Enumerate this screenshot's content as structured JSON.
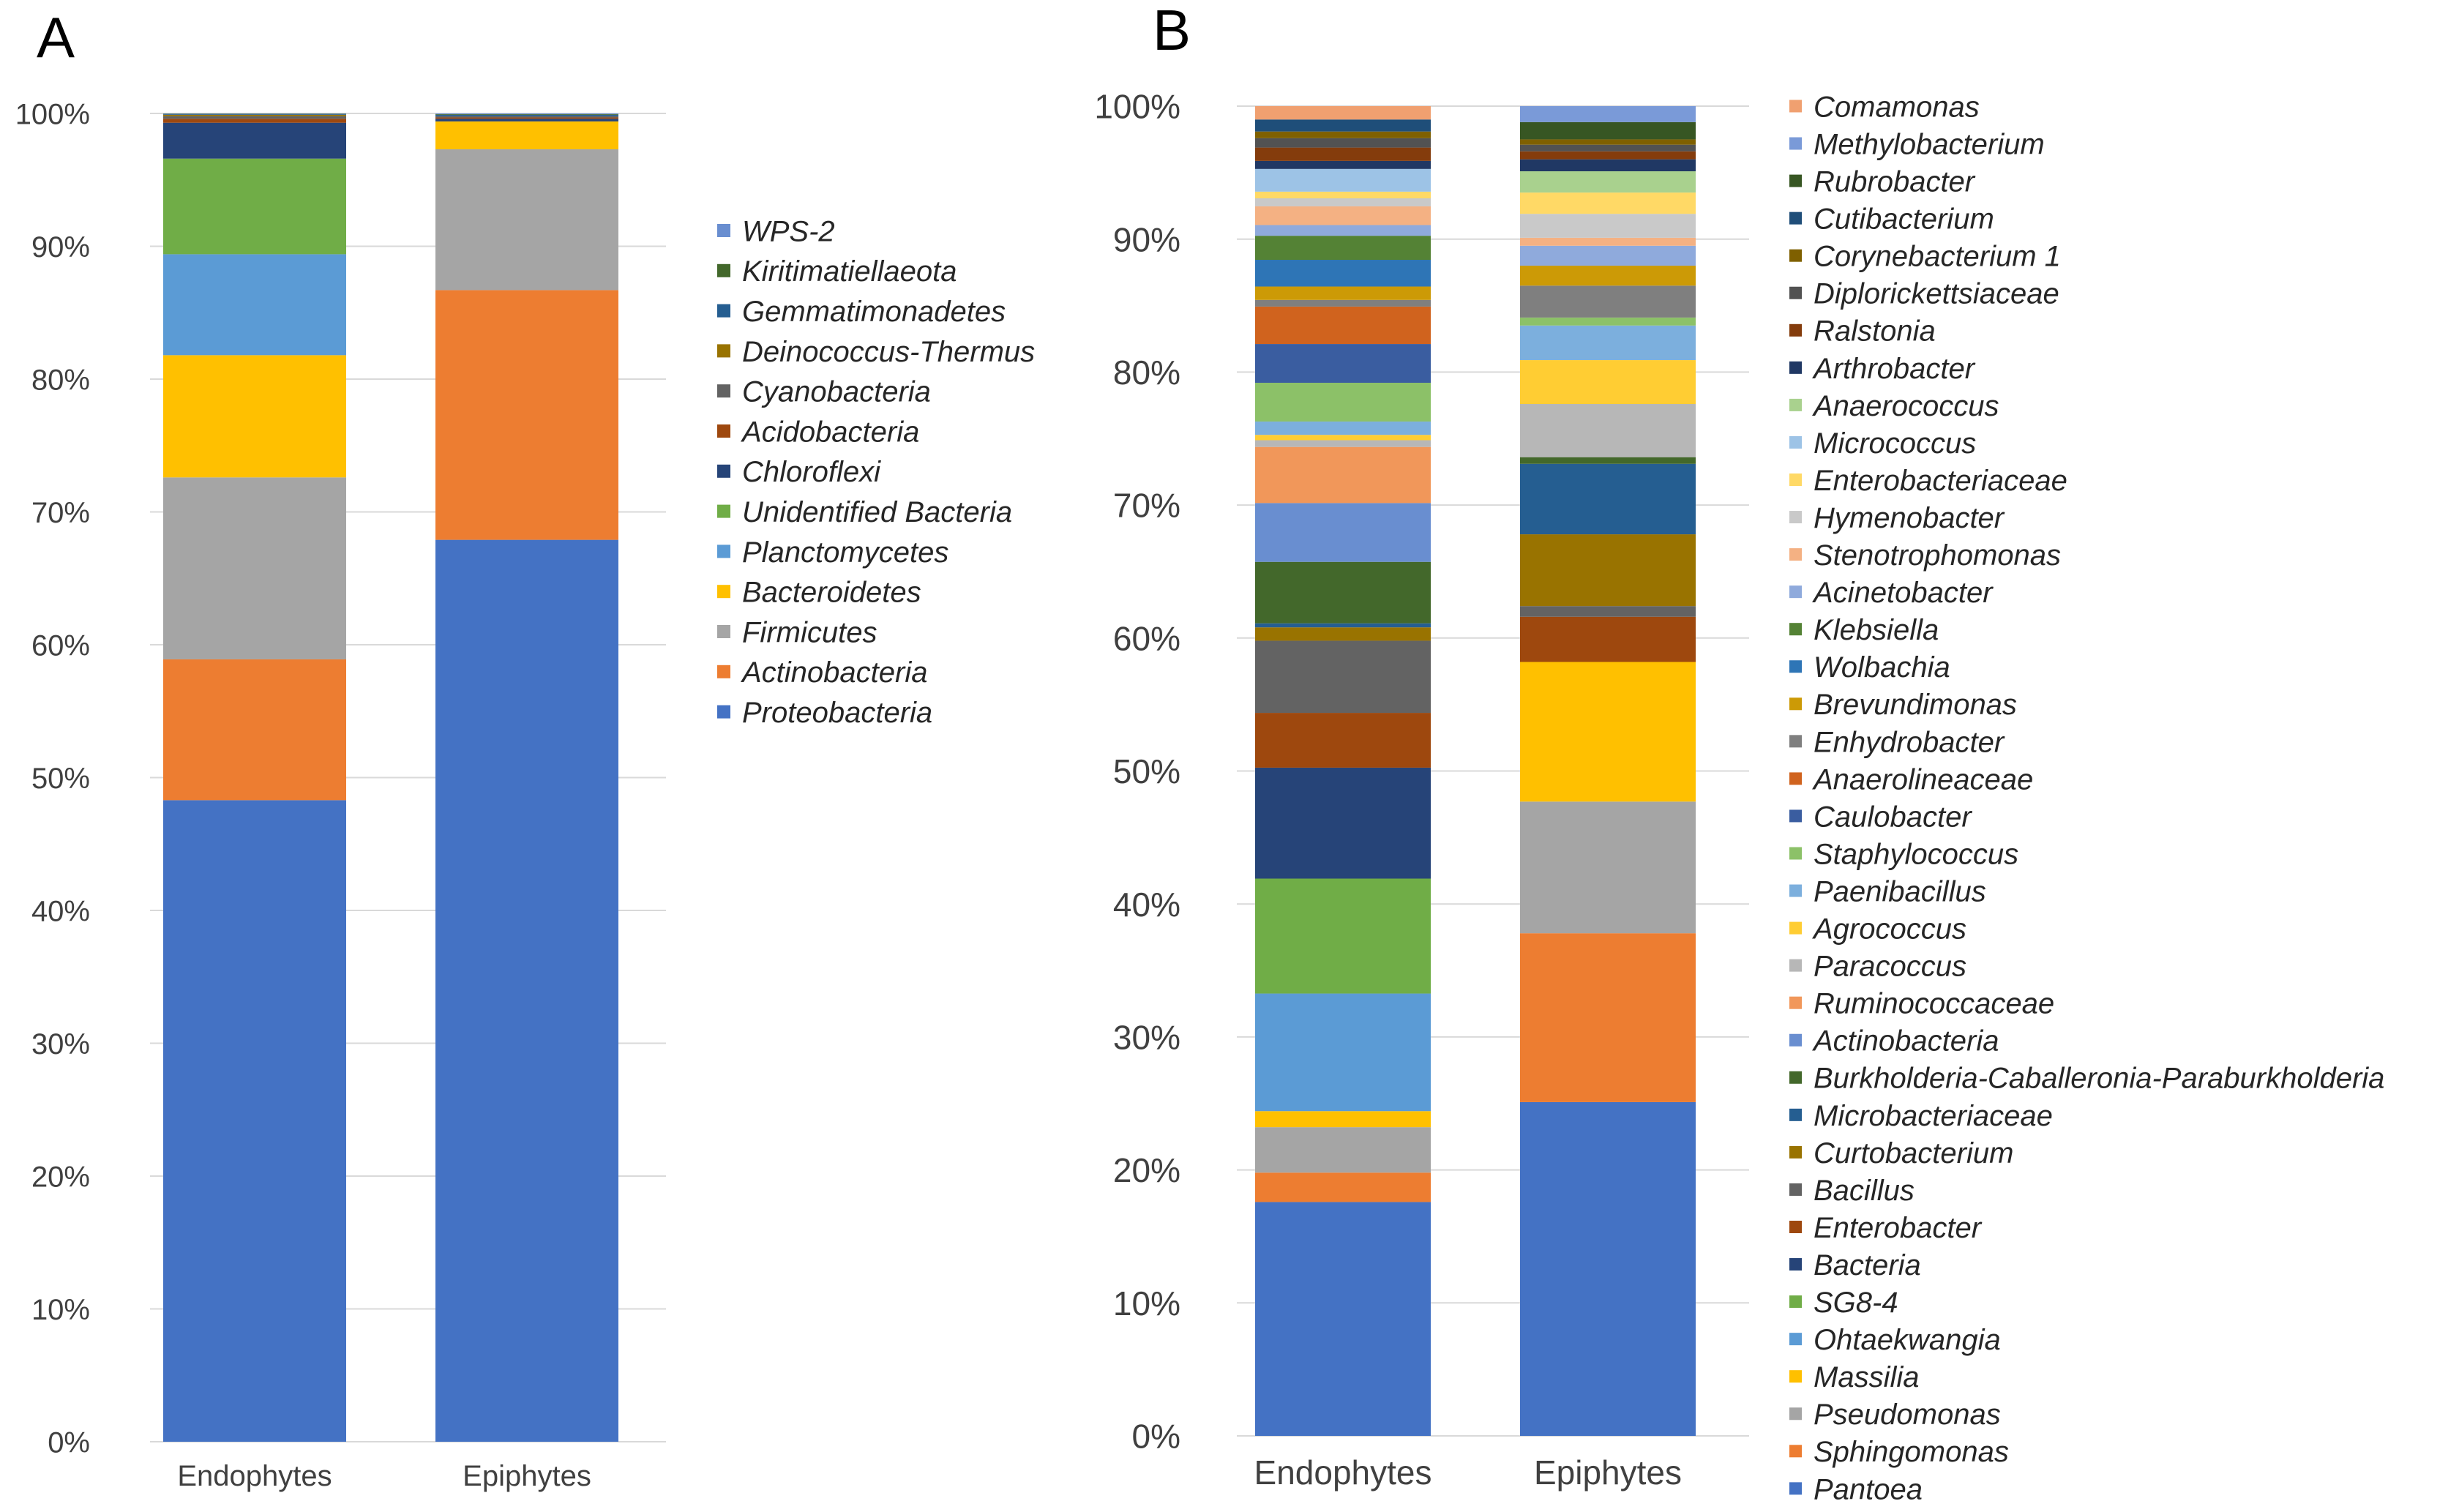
{
  "chart_data": [
    {
      "panel_label": "A",
      "type": "bar",
      "stacked": true,
      "percent": true,
      "categories": [
        "Endophytes",
        "Epiphytes"
      ],
      "ylim": [
        0,
        100
      ],
      "yticks": [
        "0%",
        "10%",
        "20%",
        "30%",
        "40%",
        "50%",
        "60%",
        "70%",
        "80%",
        "90%",
        "100%"
      ],
      "legend_position": "right",
      "series": [
        {
          "name": "Proteobacteria",
          "color": "#4472C4",
          "values": [
            48.3,
            67.9
          ]
        },
        {
          "name": "Actinobacteria",
          "color": "#ED7D31",
          "values": [
            10.6,
            18.8
          ]
        },
        {
          "name": "Firmicutes",
          "color": "#A5A5A5",
          "values": [
            13.7,
            10.6
          ]
        },
        {
          "name": "Bacteroidetes",
          "color": "#FFC000",
          "values": [
            9.2,
            2.1
          ]
        },
        {
          "name": "Planctomycetes",
          "color": "#5B9BD5",
          "values": [
            7.6,
            0.0
          ]
        },
        {
          "name": "Unidentified Bacteria",
          "color": "#70AD47",
          "values": [
            7.2,
            0.0
          ]
        },
        {
          "name": "Chloroflexi",
          "color": "#264478",
          "values": [
            2.7,
            0.2
          ]
        },
        {
          "name": "Acidobacteria",
          "color": "#9E480E",
          "values": [
            0.3,
            0.1
          ]
        },
        {
          "name": "Cyanobacteria",
          "color": "#636363",
          "values": [
            0.2,
            0.1
          ]
        },
        {
          "name": "Deinococcus-Thermus",
          "color": "#997300",
          "values": [
            0.1,
            0.0
          ]
        },
        {
          "name": "Gemmatimonadetes",
          "color": "#255E91",
          "values": [
            0.05,
            0.1
          ]
        },
        {
          "name": "Kiritimatiellaeota",
          "color": "#43682B",
          "values": [
            0.03,
            0.05
          ]
        },
        {
          "name": "WPS-2",
          "color": "#698ED0",
          "values": [
            0.02,
            0.05
          ]
        }
      ]
    },
    {
      "panel_label": "B",
      "type": "bar",
      "stacked": true,
      "percent": true,
      "categories": [
        "Endophytes",
        "Epiphytes"
      ],
      "ylim": [
        0,
        100
      ],
      "yticks": [
        "0%",
        "10%",
        "20%",
        "30%",
        "40%",
        "50%",
        "60%",
        "70%",
        "80%",
        "90%",
        "100%"
      ],
      "legend_position": "right",
      "series": [
        {
          "name": "Pantoea",
          "color": "#4472C4",
          "values": [
            17.5,
            25.1
          ]
        },
        {
          "name": "Sphingomonas",
          "color": "#ED7D31",
          "values": [
            2.2,
            12.7
          ]
        },
        {
          "name": "Pseudomonas",
          "color": "#A5A5A5",
          "values": [
            3.4,
            9.9
          ]
        },
        {
          "name": "Massilia",
          "color": "#FFC000",
          "values": [
            1.2,
            10.5
          ]
        },
        {
          "name": "Ohtaekwangia",
          "color": "#5B9BD5",
          "values": [
            8.8,
            0.0
          ]
        },
        {
          "name": "SG8-4",
          "color": "#70AD47",
          "values": [
            8.6,
            0.0
          ]
        },
        {
          "name": "Bacteria",
          "color": "#264478",
          "values": [
            8.3,
            0.0
          ]
        },
        {
          "name": "Enterobacter",
          "color": "#9E480E",
          "values": [
            4.1,
            3.4
          ]
        },
        {
          "name": "Bacillus",
          "color": "#636363",
          "values": [
            5.4,
            0.8
          ]
        },
        {
          "name": "Curtobacterium",
          "color": "#997300",
          "values": [
            1.0,
            5.4
          ]
        },
        {
          "name": "Microbacteriaceae",
          "color": "#255E91",
          "values": [
            0.3,
            5.3
          ]
        },
        {
          "name": "Burkholderia-Caballeronia-Paraburkholderia",
          "color": "#43682B",
          "values": [
            4.6,
            0.5
          ]
        },
        {
          "name": "Actinobacteria",
          "color": "#698ED0",
          "values": [
            4.4,
            0.0
          ]
        },
        {
          "name": "Ruminococcaceae",
          "color": "#F1975A",
          "values": [
            4.2,
            0.0
          ]
        },
        {
          "name": "Paracoccus",
          "color": "#B7B7B7",
          "values": [
            0.5,
            4.0
          ]
        },
        {
          "name": "Agrococcus",
          "color": "#FFCD33",
          "values": [
            0.4,
            3.3
          ]
        },
        {
          "name": "Paenibacillus",
          "color": "#7CAFDD",
          "values": [
            1.0,
            2.6
          ]
        },
        {
          "name": "Staphylococcus",
          "color": "#8CC168",
          "values": [
            2.9,
            0.6
          ]
        },
        {
          "name": "Caulobacter",
          "color": "#3A5DA0",
          "values": [
            2.9,
            0.0
          ]
        },
        {
          "name": "Anaerolineaceae",
          "color": "#D0631E",
          "values": [
            2.8,
            0.0
          ]
        },
        {
          "name": "Enhydrobacter",
          "color": "#7F7F7F",
          "values": [
            0.5,
            2.4
          ]
        },
        {
          "name": "Brevundimonas",
          "color": "#CC9A06",
          "values": [
            1.0,
            1.5
          ]
        },
        {
          "name": "Wolbachia",
          "color": "#2E75B6",
          "values": [
            2.0,
            0.0
          ]
        },
        {
          "name": "Klebsiella",
          "color": "#548235",
          "values": [
            1.8,
            0.0
          ]
        },
        {
          "name": "Acinetobacter",
          "color": "#8FAADC",
          "values": [
            0.8,
            1.5
          ]
        },
        {
          "name": "Stenotrophomonas",
          "color": "#F4B183",
          "values": [
            1.4,
            0.6
          ]
        },
        {
          "name": "Hymenobacter",
          "color": "#C9C9C9",
          "values": [
            0.6,
            1.8
          ]
        },
        {
          "name": "Enterobacteriaceae",
          "color": "#FFD966",
          "values": [
            0.5,
            1.6
          ]
        },
        {
          "name": "Micrococcus",
          "color": "#9DC3E6",
          "values": [
            1.7,
            0.0
          ]
        },
        {
          "name": "Anaerococcus",
          "color": "#A9D18E",
          "values": [
            0.0,
            1.6
          ]
        },
        {
          "name": "Arthrobacter",
          "color": "#203864",
          "values": [
            0.6,
            0.9
          ]
        },
        {
          "name": "Ralstonia",
          "color": "#843C0C",
          "values": [
            1.0,
            0.6
          ]
        },
        {
          "name": "Diplorickettsiaceae",
          "color": "#525252",
          "values": [
            0.7,
            0.5
          ]
        },
        {
          "name": "Corynebacterium 1",
          "color": "#7F6000",
          "values": [
            0.5,
            0.4
          ]
        },
        {
          "name": "Cutibacterium",
          "color": "#1F4E79",
          "values": [
            0.9,
            0.0
          ]
        },
        {
          "name": "Rubrobacter",
          "color": "#375623",
          "values": [
            0.0,
            1.3
          ]
        },
        {
          "name": "Methylobacterium",
          "color": "#7A9AD8",
          "values": [
            0.0,
            1.2
          ]
        },
        {
          "name": "Comamonas",
          "color": "#F0A070",
          "values": [
            1.0,
            0.0
          ]
        }
      ]
    }
  ]
}
